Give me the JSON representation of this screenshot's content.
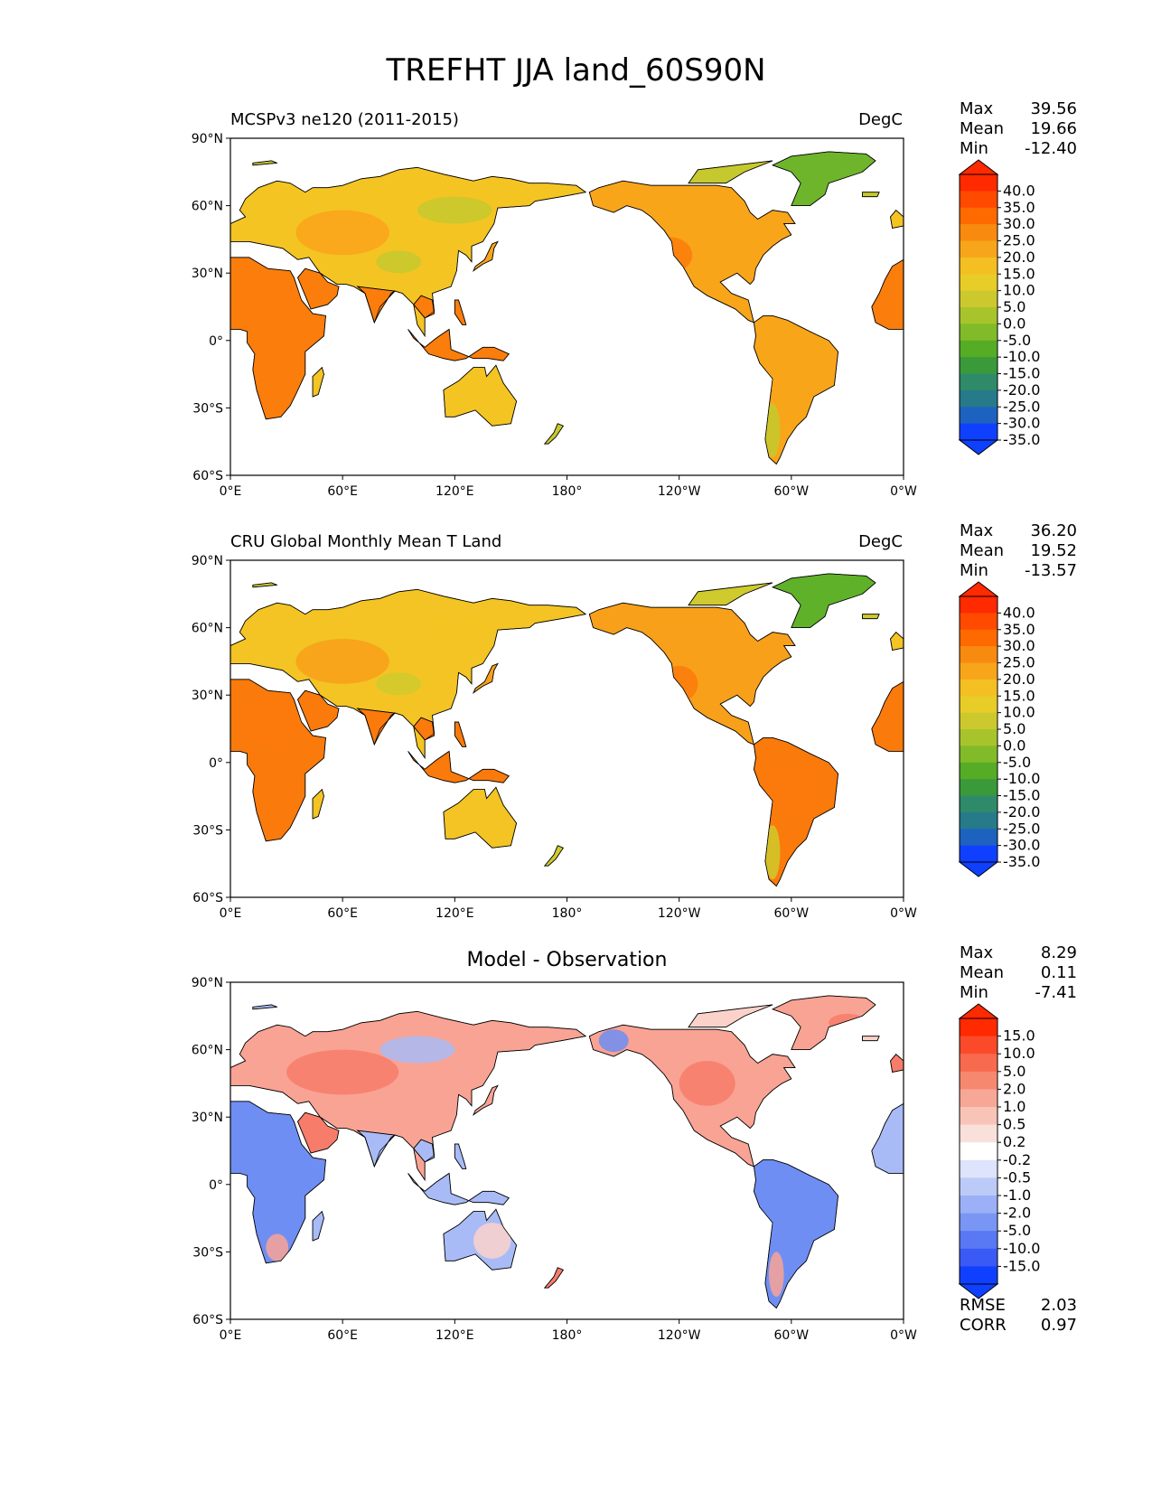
{
  "figure_title": "TREFHT JJA land_60S90N",
  "axes": {
    "lat_ticks": [
      "90°N",
      "60°N",
      "30°N",
      "0°",
      "30°S",
      "60°S"
    ],
    "lon_ticks": [
      "0°E",
      "60°E",
      "120°E",
      "180°",
      "120°W",
      "60°W",
      "0°W"
    ]
  },
  "panels": [
    {
      "id": "model",
      "title_left": "MCSPv3 ne120 (2011-2015)",
      "title_right": "DegC",
      "title_center": "",
      "stats": [
        {
          "label": "Max",
          "value": "39.56"
        },
        {
          "label": "Mean",
          "value": "19.66"
        },
        {
          "label": "Min",
          "value": "-12.40"
        }
      ],
      "colorbar_labels": [
        "40.0",
        "35.0",
        "30.0",
        "25.0",
        "20.0",
        "15.0",
        "10.0",
        "5.0",
        "0.0",
        "-5.0",
        "-10.0",
        "-15.0",
        "-20.0",
        "-25.0",
        "-30.0",
        "-35.0"
      ],
      "colorbar_colors": [
        "#ff2a00",
        "#ff4a00",
        "#ff6a00",
        "#f98a10",
        "#f7a51a",
        "#f4bf22",
        "#e8cc28",
        "#cbc92d",
        "#a8c42c",
        "#82bb2a",
        "#56ac25",
        "#3a9a3a",
        "#2f8a6a",
        "#277a8a",
        "#1e62c0",
        "#1040ff"
      ],
      "map_palette": {
        "hot": "#fb7d0c",
        "warm": "#f9a51a",
        "mild": "#f4c423",
        "cool": "#c6c92e",
        "cold": "#6fb52b"
      },
      "extra": []
    },
    {
      "id": "obs",
      "title_left": "CRU Global Monthly Mean T Land",
      "title_right": "DegC",
      "title_center": "",
      "stats": [
        {
          "label": "Max",
          "value": "36.20"
        },
        {
          "label": "Mean",
          "value": "19.52"
        },
        {
          "label": "Min",
          "value": "-13.57"
        }
      ],
      "colorbar_labels": [
        "40.0",
        "35.0",
        "30.0",
        "25.0",
        "20.0",
        "15.0",
        "10.0",
        "5.0",
        "0.0",
        "-5.0",
        "-10.0",
        "-15.0",
        "-20.0",
        "-25.0",
        "-30.0",
        "-35.0"
      ],
      "colorbar_colors": [
        "#ff2a00",
        "#ff4a00",
        "#ff6a00",
        "#f98a10",
        "#f7a51a",
        "#f4bf22",
        "#e8cc28",
        "#cbc92d",
        "#a8c42c",
        "#82bb2a",
        "#56ac25",
        "#3a9a3a",
        "#2f8a6a",
        "#277a8a",
        "#1e62c0",
        "#1040ff"
      ],
      "map_palette": {
        "hot": "#fb7a0c",
        "warm": "#f8a01a",
        "mild": "#f3c423",
        "cool": "#cfca2d",
        "cold": "#5fb12a"
      },
      "extra": []
    },
    {
      "id": "diff",
      "title_left": "",
      "title_right": "",
      "title_center": "Model - Observation",
      "stats": [
        {
          "label": "Max",
          "value": "8.29"
        },
        {
          "label": "Mean",
          "value": "0.11"
        },
        {
          "label": "Min",
          "value": "-7.41"
        }
      ],
      "colorbar_labels": [
        "15.0",
        "10.0",
        "5.0",
        "2.0",
        "1.0",
        "0.5",
        "0.2",
        "-0.2",
        "-0.5",
        "-1.0",
        "-2.0",
        "-5.0",
        "-10.0",
        "-15.0"
      ],
      "colorbar_colors": [
        "#ff2a00",
        "#fb4a2a",
        "#f86a4e",
        "#f78870",
        "#f7a796",
        "#f8c4b8",
        "#fae0da",
        "#ffffff",
        "#dde4fb",
        "#bccaf8",
        "#9bb0f6",
        "#7a96f4",
        "#5878f4",
        "#3a5af6",
        "#1040ff"
      ],
      "map_palette": {
        "hot": "#f87c6a",
        "warm": "#f9a394",
        "mild": "#fbd2ca",
        "cool": "#a9bbf6",
        "cold": "#6f8ef3"
      },
      "extra": [
        {
          "label": "RMSE",
          "value": "2.03"
        },
        {
          "label": "CORR",
          "value": "0.97"
        }
      ]
    }
  ]
}
